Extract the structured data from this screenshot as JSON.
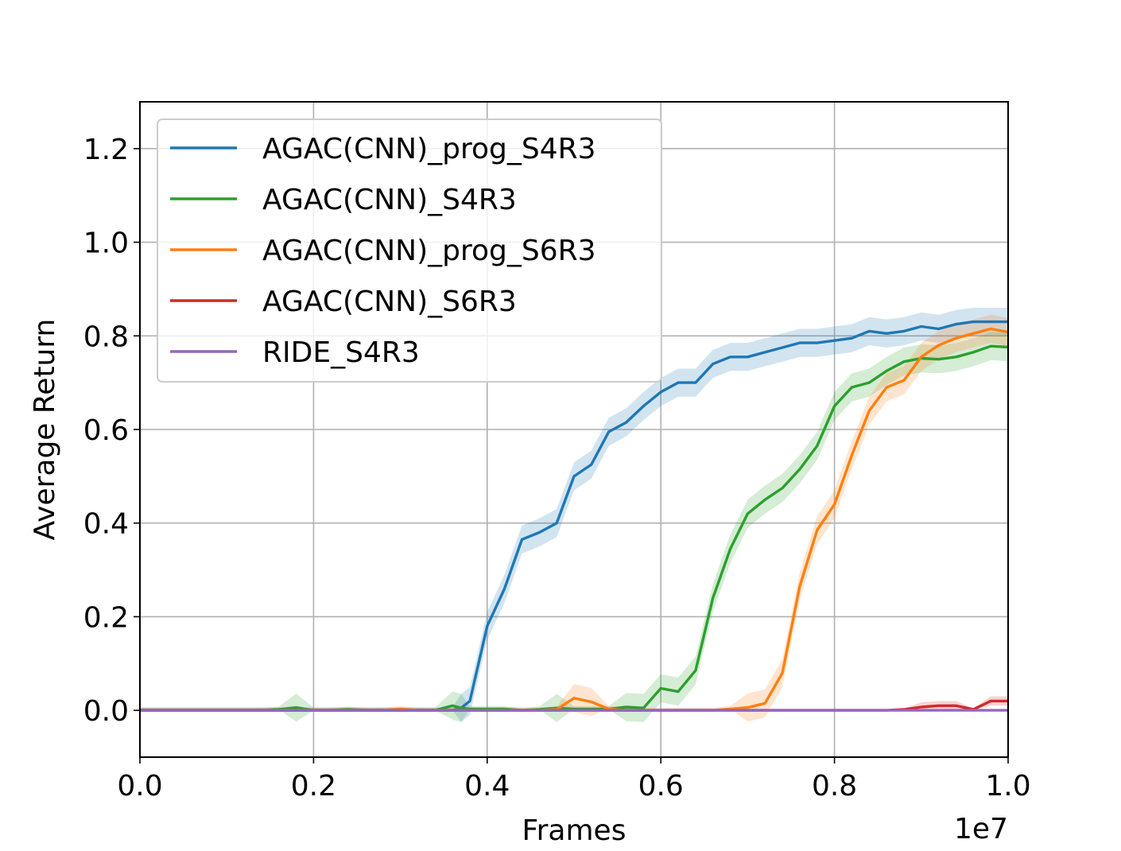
{
  "chart_data": {
    "type": "line",
    "title": "",
    "xlabel": "Frames",
    "ylabel": "Average Return",
    "x_offset_label": "1e7",
    "xlim": [
      0.0,
      1.0
    ],
    "ylim": [
      -0.1,
      1.3
    ],
    "x_ticks": [
      0.0,
      0.2,
      0.4,
      0.6,
      0.8,
      1.0
    ],
    "x_tick_labels": [
      "0.0",
      "0.2",
      "0.4",
      "0.6",
      "0.8",
      "1.0"
    ],
    "y_ticks": [
      0.0,
      0.2,
      0.4,
      0.6,
      0.8,
      1.0,
      1.2
    ],
    "y_tick_labels": [
      "0.0",
      "0.2",
      "0.4",
      "0.6",
      "0.8",
      "1.0",
      "1.2"
    ],
    "grid": true,
    "legend_position": "top-left",
    "x": [
      0.0,
      0.02,
      0.04,
      0.06,
      0.08,
      0.1,
      0.12,
      0.14,
      0.16,
      0.18,
      0.2,
      0.22,
      0.24,
      0.26,
      0.28,
      0.3,
      0.32,
      0.34,
      0.36,
      0.37,
      0.38,
      0.4,
      0.42,
      0.44,
      0.46,
      0.48,
      0.5,
      0.52,
      0.54,
      0.56,
      0.58,
      0.6,
      0.62,
      0.64,
      0.66,
      0.68,
      0.7,
      0.72,
      0.74,
      0.76,
      0.78,
      0.8,
      0.82,
      0.84,
      0.86,
      0.88,
      0.9,
      0.92,
      0.94,
      0.96,
      0.98,
      1.0
    ],
    "series": [
      {
        "name": "AGAC(CNN)_prog_S4R3",
        "color": "#1f77b4",
        "values": [
          0.0,
          0.0,
          0.0,
          0.0,
          0.0,
          0.0,
          0.0,
          0.0,
          0.0,
          0.0,
          0.0,
          0.0,
          0.0,
          0.0,
          0.0,
          0.0,
          0.0,
          0.0,
          0.0,
          0.005,
          0.02,
          0.18,
          0.26,
          0.365,
          0.38,
          0.4,
          0.5,
          0.525,
          0.595,
          0.615,
          0.65,
          0.68,
          0.7,
          0.7,
          0.74,
          0.755,
          0.755,
          0.765,
          0.775,
          0.785,
          0.785,
          0.79,
          0.795,
          0.81,
          0.805,
          0.81,
          0.82,
          0.815,
          0.825,
          0.83,
          0.83,
          0.83
        ],
        "band": 0.03
      },
      {
        "name": "AGAC(CNN)_S4R3",
        "color": "#2ca02c",
        "values": [
          0.0,
          0.0,
          0.0,
          0.0,
          0.0,
          0.0,
          0.0,
          0.0,
          0.002,
          0.006,
          0.0,
          0.0,
          0.002,
          0.0,
          0.0,
          0.0,
          0.0,
          0.0,
          0.01,
          0.005,
          0.003,
          0.003,
          0.003,
          0.0,
          0.002,
          0.005,
          0.003,
          0.003,
          0.003,
          0.007,
          0.005,
          0.047,
          0.04,
          0.085,
          0.24,
          0.345,
          0.42,
          0.45,
          0.475,
          0.515,
          0.565,
          0.65,
          0.69,
          0.7,
          0.725,
          0.745,
          0.752,
          0.75,
          0.755,
          0.765,
          0.778,
          0.776
        ],
        "band": 0.03
      },
      {
        "name": "AGAC(CNN)_prog_S6R3",
        "color": "#ff7f0e",
        "values": [
          0.0,
          0.0,
          0.0,
          0.0,
          0.0,
          0.0,
          0.0,
          0.0,
          0.0,
          0.0,
          0.0,
          0.0,
          0.0,
          0.0,
          0.0,
          0.003,
          0.0,
          0.0,
          0.0,
          0.0,
          0.0,
          0.0,
          0.0,
          0.0,
          0.0,
          0.002,
          0.026,
          0.018,
          0.003,
          0.0,
          0.0,
          0.0,
          0.0,
          0.0,
          0.0,
          0.003,
          0.006,
          0.015,
          0.08,
          0.265,
          0.385,
          0.44,
          0.545,
          0.64,
          0.69,
          0.705,
          0.755,
          0.78,
          0.795,
          0.805,
          0.815,
          0.808
        ],
        "band": 0.03
      },
      {
        "name": "AGAC(CNN)_S6R3",
        "color": "#d62728",
        "values": [
          0.0,
          0.0,
          0.0,
          0.0,
          0.0,
          0.0,
          0.0,
          0.0,
          0.0,
          0.0,
          0.0,
          0.0,
          0.0,
          0.0,
          0.0,
          0.0,
          0.0,
          0.0,
          0.0,
          0.0,
          0.0,
          0.0,
          0.0,
          0.0,
          0.0,
          0.0,
          0.0,
          0.0,
          0.0,
          0.0,
          0.0,
          0.0,
          0.0,
          0.0,
          0.0,
          0.0,
          0.0,
          0.0,
          0.0,
          0.0,
          0.0,
          0.0,
          0.0,
          0.0,
          0.0,
          0.002,
          0.007,
          0.01,
          0.01,
          0.002,
          0.02,
          0.02
        ],
        "band": 0.01
      },
      {
        "name": "RIDE_S4R3",
        "color": "#9467bd",
        "values": [
          0.0,
          0.0,
          0.0,
          0.0,
          0.0,
          0.0,
          0.0,
          0.0,
          0.0,
          0.0,
          0.0,
          0.0,
          0.0,
          0.0,
          0.0,
          0.0,
          0.0,
          0.0,
          0.0,
          0.0,
          0.0,
          0.0,
          0.0,
          0.0,
          0.0,
          0.0,
          0.0,
          0.0,
          0.0,
          0.0,
          0.0,
          0.0,
          0.0,
          0.0,
          0.0,
          0.0,
          0.0,
          0.0,
          0.0,
          0.0,
          0.0,
          0.0,
          0.0,
          0.0,
          0.0,
          0.0,
          0.0,
          0.0,
          0.0,
          0.0,
          0.0,
          0.0
        ],
        "band": 0.0
      }
    ]
  }
}
